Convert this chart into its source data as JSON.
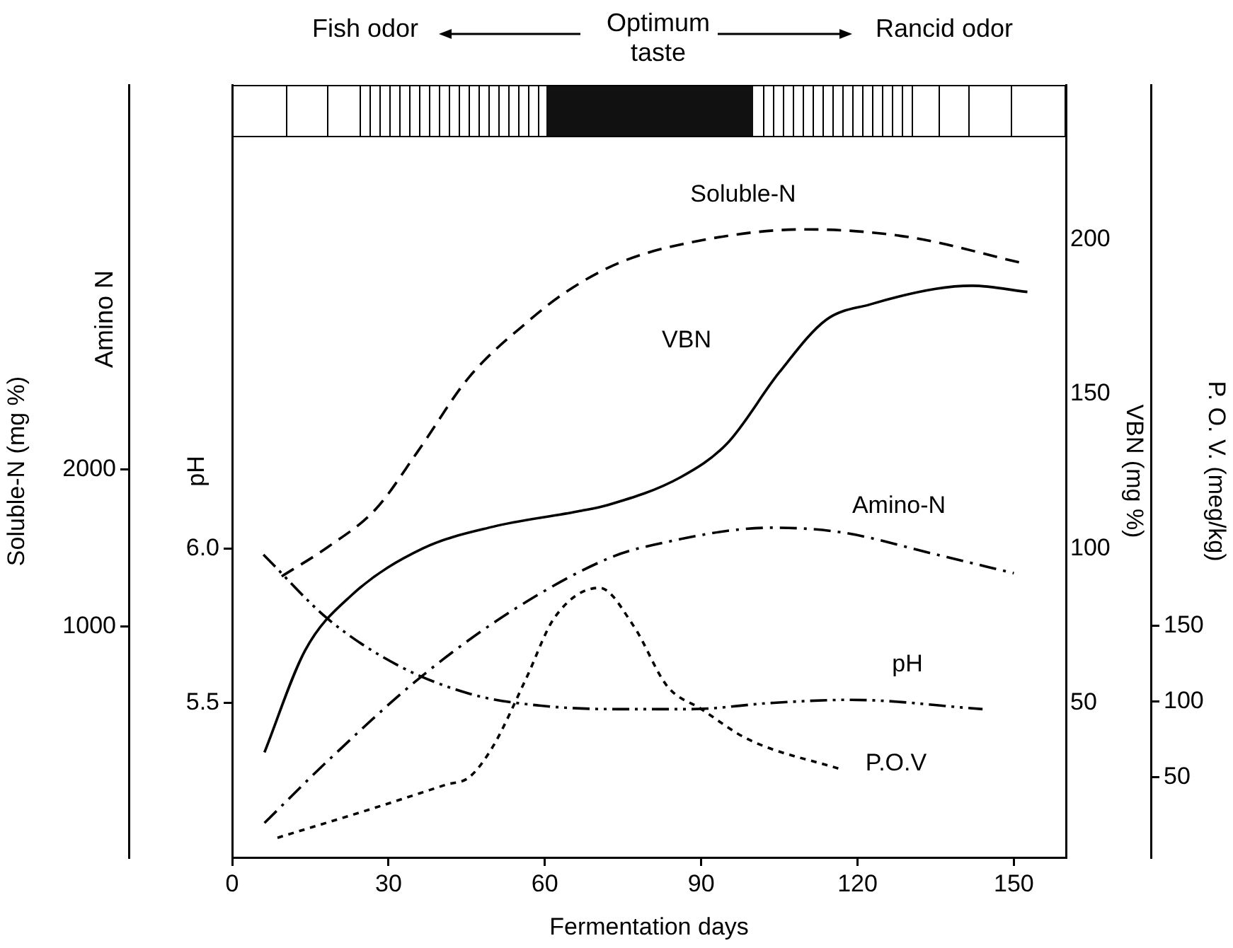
{
  "chart_data": [
    {
      "type": "line",
      "xlabel": "Fermentation days",
      "ylabel": "Soluble-N (mg %)",
      "y2label": "pH",
      "y3label": "VBN (mg %)",
      "annotations": [
        "Fish odor",
        "Optimum taste",
        "Rancid odor",
        "Amino N"
      ],
      "xlim": [
        0,
        160
      ],
      "xticks": [
        0,
        30,
        60,
        90,
        120,
        150
      ],
      "ylim": [
        -470,
        4450
      ],
      "yticks": [
        1000,
        2000
      ],
      "y2lim": [
        5.0,
        7.5
      ],
      "y2ticks": [
        5.5,
        {
          "value": 6.0,
          "label": "6.0"
        }
      ],
      "y3lim": [
        0,
        250
      ],
      "y3ticks": [
        50,
        100,
        150,
        200
      ],
      "grid": false,
      "marker": "none",
      "series": [
        {
          "name": "Soluble-N",
          "color": "#000000",
          "axis": "y",
          "line_style": "dashed",
          "x": [
            9.5,
            18.5,
            27.6,
            35.5,
            45.5,
            57,
            64,
            74.5,
            90,
            110,
            130,
            151
          ],
          "values": [
            1320,
            1510,
            1750,
            2110,
            2590,
            2950,
            3130,
            3320,
            3460,
            3530,
            3480,
            3320
          ]
        },
        {
          "name": "VBN",
          "color": "#000000",
          "axis": "y3",
          "line_style": "solid",
          "x": [
            6.2,
            14,
            23,
            36.6,
            50,
            66.4,
            72,
            86,
            95,
            105,
            114,
            122.5,
            135,
            142,
            152.6
          ],
          "values": [
            34,
            67,
            85,
            100,
            107,
            112,
            114,
            123,
            134,
            157,
            174,
            179,
            184,
            185,
            183
          ]
        },
        {
          "name": "Amino-N",
          "color": "#000000",
          "axis": "y",
          "line_style": "dashdot",
          "x": [
            6.2,
            18.5,
            36.6,
            54.6,
            72.6,
            80.8,
            103.5,
            117,
            135,
            150
          ],
          "values": [
            -250,
            150,
            690,
            1120,
            1440,
            1520,
            1630,
            1600,
            1460,
            1340
          ]
        },
        {
          "name": "pH",
          "color": "#000000",
          "axis": "y2",
          "line_style": "dashdotdot",
          "x": [
            6,
            18.5,
            32,
            45.5,
            54.6,
            72.6,
            88,
            103.5,
            118.7,
            144
          ],
          "values": [
            5.98,
            5.77,
            5.62,
            5.53,
            5.5,
            5.48,
            5.48,
            5.5,
            5.51,
            5.48
          ]
        }
      ]
    },
    {
      "type": "line",
      "ylabel": "P. O. V. (meg/kg)",
      "xlim": [
        0,
        160
      ],
      "xticks": [
        0,
        30,
        60,
        90,
        120,
        150
      ],
      "ylim": [
        -3,
        507
      ],
      "yticks": [
        50,
        100,
        150
      ],
      "tick_labels": "y",
      "grid": false,
      "marker": "none",
      "series": [
        {
          "name": "P.O.V",
          "color": "#000000",
          "line_style": "dotted",
          "x": [
            8.7,
            27.6,
            41,
            45.5,
            50,
            56.4,
            61.8,
            70.5,
            77,
            83.5,
            90,
            99,
            117
          ],
          "values": [
            10,
            30,
            45,
            50,
            70,
            115,
            155,
            175,
            150,
            110,
            95,
            75,
            55
          ]
        }
      ]
    }
  ]
}
